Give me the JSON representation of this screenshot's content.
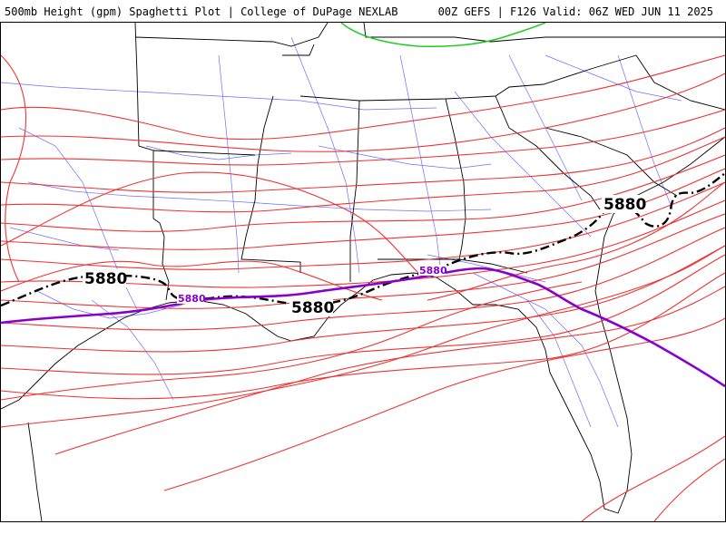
{
  "header": {
    "left_title": "500mb Height (gpm) Spaghetti Plot | College of DuPage NEXLAB",
    "right_title": "00Z GEFS | F126 Valid: 06Z WED JUN 11 2025"
  },
  "map": {
    "contour_labels": {
      "mean_west": "5880",
      "mean_center": "5880",
      "mean_east": "5880",
      "operational_west": "5880",
      "operational_center": "5880"
    },
    "colors": {
      "ensemble_members": "#ee3333",
      "ensemble_mean": "#000000",
      "operational": "#8800cc",
      "other_contour": "#22cc22",
      "state_borders": "#000000",
      "highways": "#5555ff"
    }
  }
}
